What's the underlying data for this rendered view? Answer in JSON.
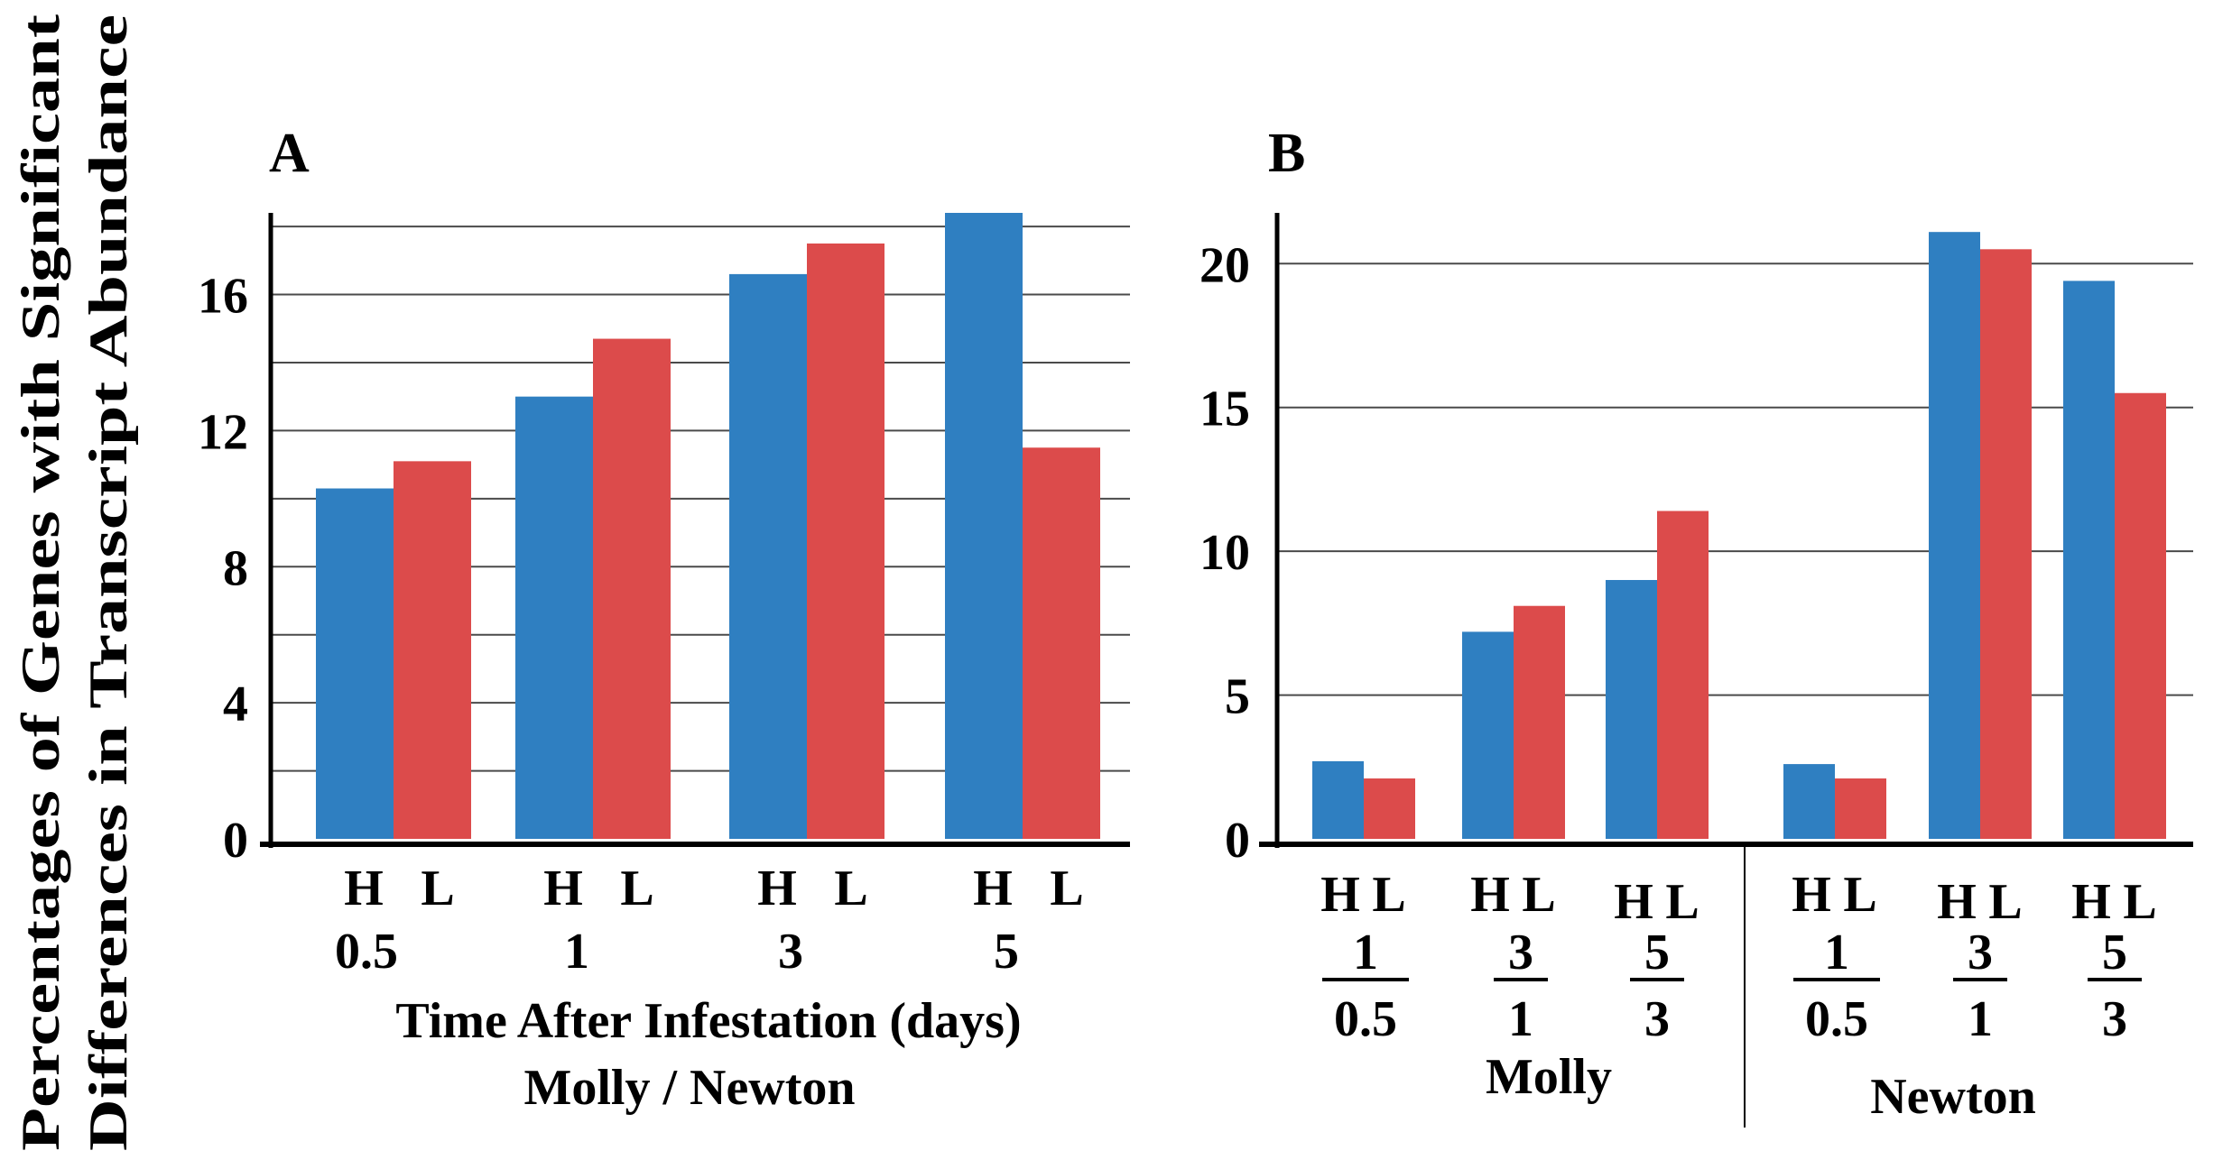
{
  "y_axis_title": {
    "line1": "Percentages of Genes with Significant",
    "line2": "Differences in Transcript Abundance"
  },
  "colors": {
    "H": "#2f7fc1",
    "L": "#dc4b4b",
    "axis": "#000000",
    "grid": "#4a4a4a"
  },
  "chart_data": [
    {
      "panel": "A",
      "type": "bar",
      "series_labels": [
        "H",
        "L"
      ],
      "categories": [
        "0.5",
        "1",
        "3",
        "5"
      ],
      "series": [
        {
          "name": "H",
          "values": [
            10.3,
            13.0,
            16.6,
            18.4
          ]
        },
        {
          "name": "L",
          "values": [
            11.1,
            14.7,
            17.5,
            11.5
          ]
        }
      ],
      "ylim": [
        0,
        18.4
      ],
      "yticks": [
        0,
        4,
        8,
        12,
        16
      ],
      "xlabel": "Time After Infestation (days)",
      "xlabel2": "Molly / Newton",
      "grid": true
    },
    {
      "panel": "B",
      "type": "bar",
      "series_labels": [
        "H",
        "L"
      ],
      "categories": [
        {
          "num": "1",
          "den": "0.5"
        },
        {
          "num": "3",
          "den": "1"
        },
        {
          "num": "5",
          "den": "3"
        },
        {
          "num": "1",
          "den": "0.5"
        },
        {
          "num": "3",
          "den": "1"
        },
        {
          "num": "5",
          "den": "3"
        }
      ],
      "series": [
        {
          "name": "H",
          "values": [
            2.7,
            7.2,
            9.0,
            2.6,
            21.1,
            19.4
          ]
        },
        {
          "name": "L",
          "values": [
            2.1,
            8.1,
            11.4,
            2.1,
            20.5,
            15.5
          ]
        }
      ],
      "ylim": [
        0,
        21.2
      ],
      "yticks": [
        0,
        5,
        10,
        15,
        20
      ],
      "groups": [
        "Molly",
        "Newton"
      ],
      "grid": true
    }
  ]
}
